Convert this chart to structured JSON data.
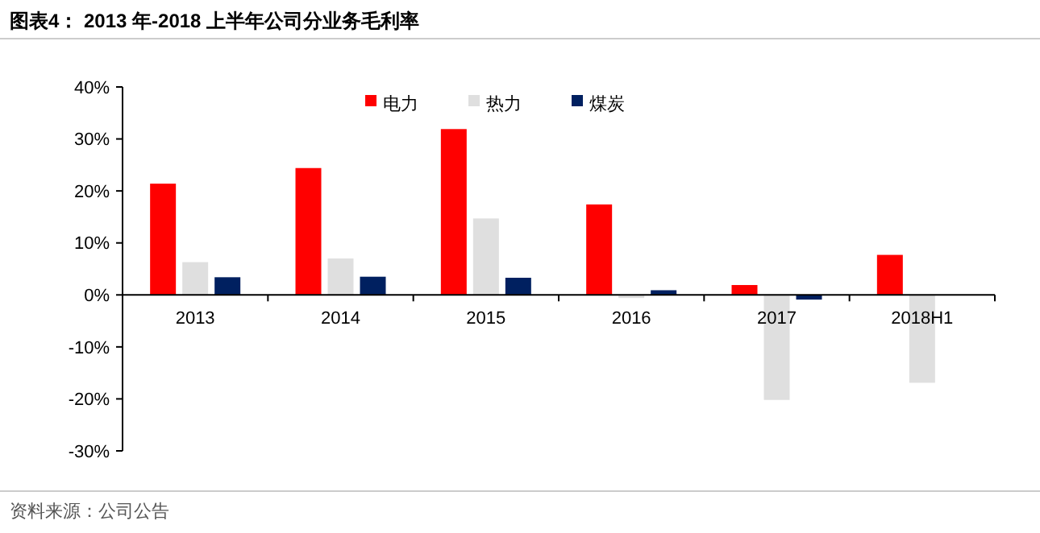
{
  "chart_data": {
    "type": "bar",
    "title": "图表4：  2013 年-2018 上半年公司分业务毛利率",
    "categories": [
      "2013",
      "2014",
      "2015",
      "2016",
      "2017",
      "2018H1"
    ],
    "series": [
      {
        "name": "电力",
        "color": "#ff0000",
        "values": [
          21.4,
          24.4,
          31.9,
          17.4,
          1.9,
          7.7
        ]
      },
      {
        "name": "热力",
        "color": "#dfdfdf",
        "values": [
          6.3,
          7.0,
          14.7,
          -0.6,
          -20.2,
          -16.9
        ]
      },
      {
        "name": "煤炭",
        "color": "#002060",
        "values": [
          3.4,
          3.5,
          3.3,
          0.9,
          -0.9,
          null
        ]
      }
    ],
    "ylim": [
      -30,
      40
    ],
    "yticks": [
      {
        "value": -30,
        "label": "-30%"
      },
      {
        "value": -20,
        "label": "-20%"
      },
      {
        "value": -10,
        "label": "-10%"
      },
      {
        "value": 0,
        "label": "0%"
      },
      {
        "value": 10,
        "label": "10%"
      },
      {
        "value": 20,
        "label": "20%"
      },
      {
        "value": 30,
        "label": "30%"
      },
      {
        "value": 40,
        "label": "40%"
      }
    ],
    "legend": "top",
    "grid": false,
    "annotations": [
      "资料来源：公司公告"
    ]
  }
}
